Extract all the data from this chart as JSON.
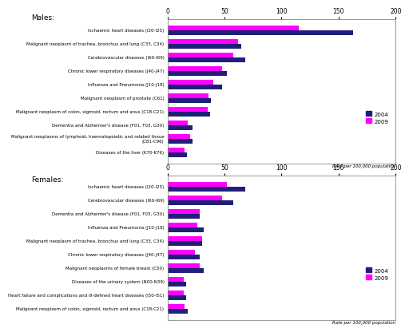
{
  "males_categories": [
    "Ischaemic heart diseases (I20-I25)",
    "Malignant neoplasm of trachea, bronchus and lung (C33, C34)",
    "Cerebrovascular diseases (I60-I69)",
    "Chronic lower respiratory diseases (J40-J47)",
    "Influenza and Pneumonia (J10-J18)",
    "Malignant neoplasm of prostate (C61)",
    "Malignant neoplasm of colon, sigmoid, rectum and anus (C18-C21)",
    "Dementia and Alzheimer's disease (F01, F03, G30)",
    "Malignant neoplasms of lymphoid, haematopoietic and related tissue\n(C81-C96)",
    "Diseases of the liver (K70-K76)"
  ],
  "males_2004": [
    163,
    65,
    68,
    52,
    48,
    38,
    37,
    22,
    22,
    17
  ],
  "males_2009": [
    115,
    62,
    58,
    48,
    40,
    36,
    35,
    18,
    20,
    15
  ],
  "females_categories": [
    "Ischaemic heart diseases (I20-I25)",
    "Cerebrovascular diseases (I60-I69)",
    "Dementia and Alzheimer's disease (F01, F03, G30)",
    "Influenza and Pneumonia (J10-J18)",
    "Malignant neoplasm of trachea, bronchus and lung (C33, C34)",
    "Chronic lower respiratory diseases (J40-J47)",
    "Malignant neoplasms of female breast (C50)",
    "Diseases of the urinary system (N00-N39)",
    "Heart failure and complications and ill-defined heart diseases (I50-I51)",
    "Malignant neoplasm of colon, sigmoid, rectum and anus (C18-C21)"
  ],
  "females_2004": [
    68,
    58,
    28,
    32,
    30,
    28,
    32,
    16,
    16,
    18
  ],
  "females_2009": [
    52,
    48,
    28,
    26,
    30,
    24,
    28,
    14,
    14,
    15
  ],
  "color_2004": "#1f1f7a",
  "color_2009": "#ff00ff",
  "xlabel": "Rate per 100,000 population",
  "xlim": [
    0,
    200
  ],
  "xticks": [
    0,
    50,
    100,
    150,
    200
  ],
  "panel_bg": "#ffffff",
  "chart_bg": "#ffffff",
  "males_title": "Males:",
  "females_title": "Females:",
  "legend_2004": "2004",
  "legend_2009": "2009"
}
